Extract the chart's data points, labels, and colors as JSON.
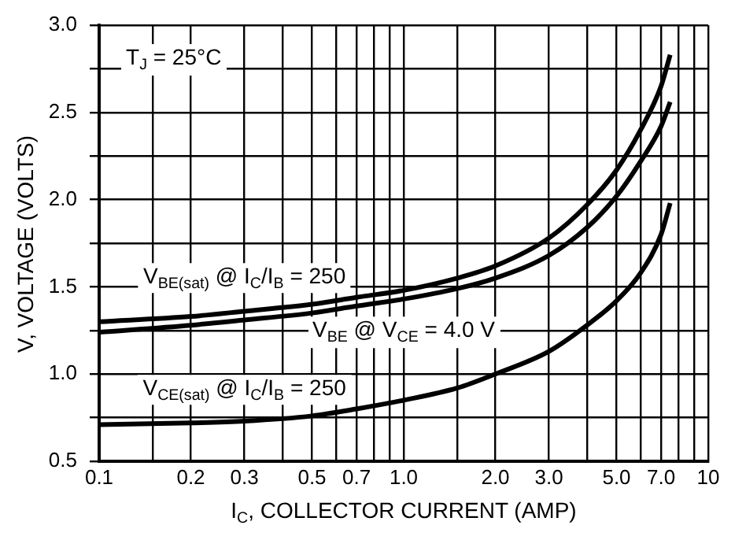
{
  "chart_data": {
    "type": "line",
    "xlabel": "I$_{C}$, COLLECTOR CURRENT (AMP)",
    "ylabel": "V, VOLTAGE (VOLTS)",
    "log": "x",
    "xlim": [
      0.1,
      10
    ],
    "ylim": [
      0.5,
      3.0
    ],
    "xticks": [
      0.1,
      {
        "value": 0.15,
        "label": null
      },
      0.2,
      0.3,
      {
        "value": 0.4,
        "label": null
      },
      0.5,
      {
        "value": 0.6,
        "label": null
      },
      0.7,
      {
        "value": 0.8,
        "label": null
      },
      {
        "value": 0.9,
        "label": null
      },
      {
        "value": 1,
        "label": "1.0"
      },
      {
        "value": 1.5,
        "label": null
      },
      {
        "value": 2,
        "label": "2.0"
      },
      {
        "value": 3,
        "label": "3.0"
      },
      {
        "value": 4,
        "label": null
      },
      {
        "value": 5,
        "label": "5.0"
      },
      {
        "value": 6,
        "label": null
      },
      {
        "value": 7,
        "label": "7.0"
      },
      {
        "value": 8,
        "label": null
      },
      {
        "value": 9,
        "label": null
      },
      10
    ],
    "yticks": [
      0.5,
      {
        "value": 0.75,
        "label": null
      },
      {
        "value": 1,
        "label": "1.0"
      },
      {
        "value": 1.25,
        "label": null
      },
      1.5,
      {
        "value": 1.75,
        "label": null
      },
      {
        "value": 2,
        "label": "2.0"
      },
      {
        "value": 2.25,
        "label": null
      },
      2.5,
      {
        "value": 2.75,
        "label": null
      },
      {
        "value": 3,
        "label": "3.0"
      }
    ],
    "grid": true,
    "legend": false,
    "marker": "none",
    "line_style": "solid",
    "series": [
      {
        "name": "V$_{BE(sat)}$ @ I$_{C}$/I$_{B}$ = 250",
        "color": "#000000",
        "x": [
          0.1,
          0.2,
          0.3,
          0.5,
          0.7,
          1,
          1.5,
          2,
          3,
          4,
          5,
          6,
          7,
          7.5
        ],
        "values": [
          1.3,
          1.33,
          1.36,
          1.4,
          1.44,
          1.48,
          1.55,
          1.62,
          1.78,
          1.97,
          2.17,
          2.4,
          2.65,
          2.83
        ]
      },
      {
        "name": "V$_{BE}$ @ V$_{CE}$ = 4.0 V",
        "color": "#000000",
        "x": [
          0.1,
          0.2,
          0.3,
          0.5,
          0.7,
          1,
          1.5,
          2,
          3,
          4,
          5,
          6,
          7,
          7.5
        ],
        "values": [
          1.24,
          1.28,
          1.31,
          1.35,
          1.39,
          1.43,
          1.49,
          1.55,
          1.68,
          1.84,
          2.02,
          2.22,
          2.42,
          2.56
        ]
      },
      {
        "name": "V$_{CE(sat)}$ @ I$_{C}$/I$_{B}$ = 250",
        "color": "#000000",
        "x": [
          0.1,
          0.2,
          0.3,
          0.5,
          0.7,
          1,
          1.5,
          2,
          3,
          4,
          5,
          6,
          7,
          7.5
        ],
        "values": [
          0.71,
          0.72,
          0.73,
          0.76,
          0.8,
          0.85,
          0.92,
          1.0,
          1.13,
          1.28,
          1.42,
          1.58,
          1.8,
          1.98
        ]
      }
    ],
    "annotations": [
      "T$_{J}$ = 25°C"
    ]
  }
}
